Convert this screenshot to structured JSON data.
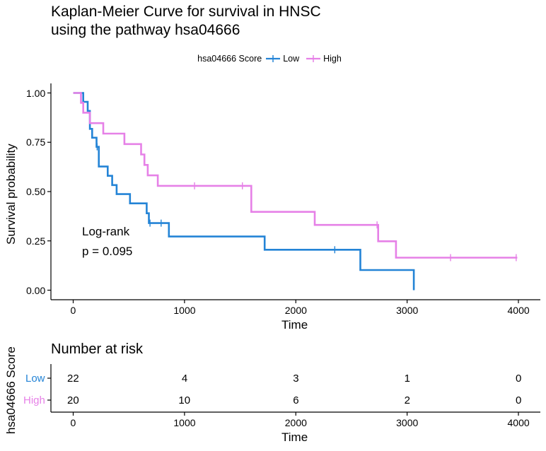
{
  "chart_data": [
    {
      "type": "line",
      "subtype": "kaplan-meier",
      "title": "Kaplan-Meier Curve for survival in HNSC\nusing the pathway hsa04666",
      "title_lines": [
        "Kaplan-Meier Curve for survival in HNSC",
        "using the pathway hsa04666"
      ],
      "xlabel": "Time",
      "ylabel": "Survival probability",
      "xlim": [
        -200,
        4200
      ],
      "ylim": [
        -0.05,
        1.04
      ],
      "xticks": [
        0,
        1000,
        2000,
        3000,
        4000
      ],
      "xtick_labels": [
        "0",
        "1000",
        "2000",
        "3000",
        "4000"
      ],
      "yticks": [
        0,
        0.25,
        0.5,
        0.75,
        1.0
      ],
      "ytick_labels": [
        "0.00",
        "0.25",
        "0.50",
        "0.75",
        "1.00"
      ],
      "grid": false,
      "legend": {
        "title": "hsa04666 Score",
        "position": "top",
        "entries": [
          "Low",
          "High"
        ]
      },
      "annotation": [
        "Log-rank",
        "p = 0.095"
      ],
      "series": [
        {
          "name": "Low",
          "color": "#2484D6",
          "steps": [
            [
              0,
              1.0
            ],
            [
              90,
              1.0
            ],
            [
              90,
              0.955
            ],
            [
              130,
              0.955
            ],
            [
              130,
              0.909
            ],
            [
              150,
              0.909
            ],
            [
              150,
              0.818
            ],
            [
              170,
              0.818
            ],
            [
              170,
              0.773
            ],
            [
              210,
              0.773
            ],
            [
              210,
              0.727
            ],
            [
              230,
              0.727
            ],
            [
              230,
              0.627
            ],
            [
              310,
              0.627
            ],
            [
              310,
              0.58
            ],
            [
              350,
              0.58
            ],
            [
              350,
              0.533
            ],
            [
              390,
              0.533
            ],
            [
              390,
              0.487
            ],
            [
              510,
              0.487
            ],
            [
              510,
              0.44
            ],
            [
              660,
              0.44
            ],
            [
              660,
              0.39
            ],
            [
              680,
              0.39
            ],
            [
              680,
              0.34
            ],
            [
              860,
              0.34
            ],
            [
              860,
              0.272
            ],
            [
              1720,
              0.272
            ],
            [
              1720,
              0.205
            ],
            [
              2580,
              0.205
            ],
            [
              2580,
              0.102
            ],
            [
              3060,
              0.102
            ],
            [
              3060,
              0.0
            ]
          ],
          "censor": [
            [
              215,
              0.727
            ],
            [
              690,
              0.34
            ],
            [
              790,
              0.34
            ],
            [
              2350,
              0.205
            ]
          ]
        },
        {
          "name": "High",
          "color": "#E681E7",
          "steps": [
            [
              0,
              1.0
            ],
            [
              70,
              1.0
            ],
            [
              70,
              0.95
            ],
            [
              90,
              0.95
            ],
            [
              90,
              0.9
            ],
            [
              150,
              0.9
            ],
            [
              150,
              0.847
            ],
            [
              270,
              0.847
            ],
            [
              270,
              0.794
            ],
            [
              460,
              0.794
            ],
            [
              460,
              0.741
            ],
            [
              610,
              0.741
            ],
            [
              610,
              0.688
            ],
            [
              640,
              0.688
            ],
            [
              640,
              0.635
            ],
            [
              670,
              0.635
            ],
            [
              670,
              0.582
            ],
            [
              760,
              0.582
            ],
            [
              760,
              0.529
            ],
            [
              1600,
              0.529
            ],
            [
              1600,
              0.397
            ],
            [
              2170,
              0.397
            ],
            [
              2170,
              0.331
            ],
            [
              2740,
              0.331
            ],
            [
              2740,
              0.248
            ],
            [
              2900,
              0.248
            ],
            [
              2900,
              0.165
            ],
            [
              3990,
              0.165
            ]
          ],
          "censor": [
            [
              1090,
              0.529
            ],
            [
              1520,
              0.529
            ],
            [
              2730,
              0.331
            ],
            [
              3390,
              0.165
            ],
            [
              3980,
              0.165
            ]
          ]
        }
      ]
    },
    {
      "type": "table",
      "title": "Number at risk",
      "ylabel": "hsa04666 Score",
      "xlabel": "Time",
      "times": [
        0,
        1000,
        2000,
        3000,
        4000
      ],
      "xtick_labels": [
        "0",
        "1000",
        "2000",
        "3000",
        "4000"
      ],
      "strata": [
        {
          "name": "Low",
          "color": "#2484D6",
          "counts": [
            "22",
            "4",
            "3",
            "1",
            "0"
          ]
        },
        {
          "name": "High",
          "color": "#E681E7",
          "counts": [
            "20",
            "10",
            "6",
            "2",
            "0"
          ]
        }
      ]
    }
  ]
}
